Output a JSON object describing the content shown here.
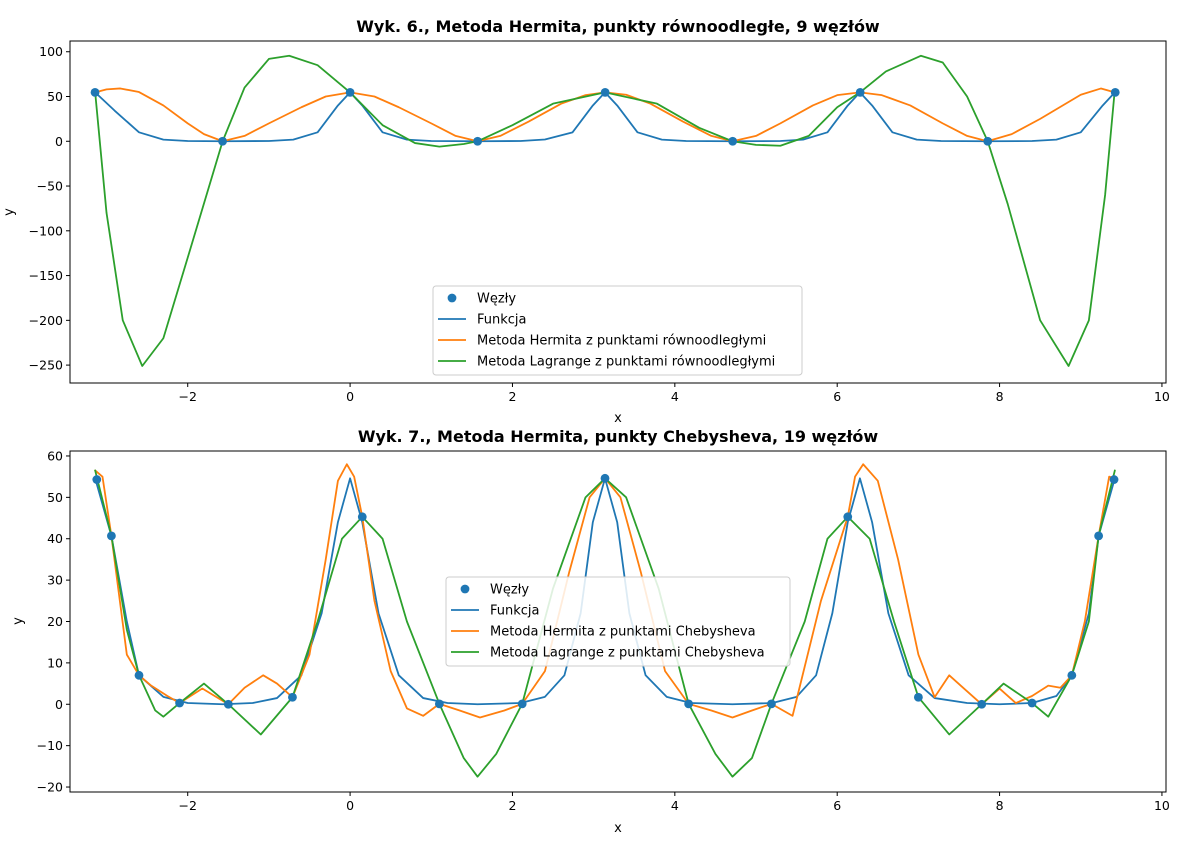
{
  "chart_data": [
    {
      "type": "line",
      "title": "Wyk. 6., Metoda Hermita, punkty równoodległe, 9 węzłów",
      "xlabel": "x",
      "ylabel": "y",
      "xlim": [
        -3.45,
        10.05
      ],
      "ylim": [
        -270,
        112
      ],
      "xticks": [
        -2,
        0,
        2,
        4,
        6,
        8,
        10
      ],
      "yticks": [
        -250,
        -200,
        -150,
        -100,
        -50,
        0,
        50,
        100
      ],
      "legend_position": "lower center",
      "nodes": {
        "name": "Węzły",
        "color": "#1f77b4",
        "x": [
          -3.1416,
          -1.5708,
          0,
          1.5708,
          3.1416,
          4.7124,
          6.2832,
          7.854,
          9.4248
        ],
        "y": [
          54.6,
          0,
          54.6,
          0,
          54.6,
          0,
          54.6,
          0,
          54.6
        ]
      },
      "series": [
        {
          "name": "Funkcja",
          "color": "#1f77b4",
          "x": [
            -3.14,
            -2.9,
            -2.6,
            -2.3,
            -2.0,
            -1.57,
            -1.0,
            -0.7,
            -0.4,
            -0.15,
            0,
            0.15,
            0.4,
            0.7,
            1.0,
            1.57,
            2.1,
            2.4,
            2.74,
            2.99,
            3.14,
            3.29,
            3.54,
            3.84,
            4.14,
            4.71,
            5.3,
            5.58,
            5.88,
            6.13,
            6.28,
            6.43,
            6.68,
            6.98,
            7.28,
            7.85,
            8.4,
            8.7,
            9.0,
            9.27,
            9.42
          ],
          "y": [
            54.6,
            34.2,
            10.0,
            1.8,
            0.3,
            0.0,
            0.3,
            1.8,
            10.0,
            40.0,
            54.6,
            40.0,
            10.0,
            1.8,
            0.3,
            0.0,
            0.3,
            2.0,
            10.0,
            40.0,
            54.6,
            40.0,
            10.0,
            1.8,
            0.3,
            0.0,
            0.3,
            1.8,
            10.0,
            40.0,
            54.6,
            40.0,
            10.0,
            1.8,
            0.3,
            0.0,
            0.3,
            1.8,
            10.0,
            40.0,
            54.6
          ]
        },
        {
          "name": "Metoda Hermita z punktami równoodległymi",
          "color": "#ff7f0e",
          "x": [
            -3.14,
            -3.0,
            -2.83,
            -2.6,
            -2.3,
            -2.0,
            -1.8,
            -1.57,
            -1.3,
            -1.0,
            -0.6,
            -0.3,
            0,
            0.3,
            0.6,
            1.0,
            1.3,
            1.57,
            1.85,
            2.2,
            2.6,
            2.9,
            3.14,
            3.4,
            3.7,
            4.1,
            4.45,
            4.71,
            5.0,
            5.3,
            5.7,
            6.0,
            6.28,
            6.55,
            6.9,
            7.3,
            7.6,
            7.85,
            8.15,
            8.5,
            9.0,
            9.25,
            9.42
          ],
          "y": [
            54.6,
            58.0,
            59.0,
            55.0,
            40.0,
            20.0,
            8.0,
            0.0,
            6.0,
            20.0,
            38.0,
            50.0,
            54.6,
            50.0,
            38.0,
            20.0,
            6.0,
            0.0,
            6.0,
            22.0,
            42.0,
            51.5,
            54.6,
            52.0,
            42.0,
            22.0,
            6.0,
            0.0,
            6.0,
            20.0,
            40.0,
            51.5,
            54.6,
            51.5,
            40.0,
            20.0,
            6.0,
            0.0,
            8.0,
            25.0,
            52.0,
            59.0,
            54.6
          ]
        },
        {
          "name": "Metoda Lagrange z punktami równoodległymi",
          "color": "#2ca02c",
          "x": [
            -3.14,
            -3.0,
            -2.8,
            -2.56,
            -2.3,
            -2.0,
            -1.57,
            -1.3,
            -1.0,
            -0.75,
            -0.4,
            0,
            0.4,
            0.8,
            1.1,
            1.4,
            1.57,
            2.0,
            2.5,
            3.14,
            3.78,
            4.3,
            4.71,
            5.0,
            5.3,
            5.65,
            6.0,
            6.28,
            6.6,
            7.03,
            7.3,
            7.6,
            7.854,
            8.1,
            8.5,
            8.85,
            9.1,
            9.3,
            9.42
          ],
          "y": [
            54.6,
            -80.0,
            -200.0,
            -251.0,
            -220.0,
            -130.0,
            0.0,
            60.0,
            92.0,
            95.5,
            85.0,
            54.6,
            18.0,
            -2.0,
            -6.0,
            -3.0,
            0.0,
            18.0,
            42.0,
            54.6,
            42.0,
            15.0,
            0.0,
            -4.0,
            -5.0,
            6.0,
            38.0,
            54.6,
            78.0,
            95.5,
            88.0,
            50.0,
            0.0,
            -70.0,
            -200.0,
            -251.0,
            -200.0,
            -60.0,
            58.0
          ]
        }
      ]
    },
    {
      "type": "line",
      "title": "Wyk. 7., Metoda Hermita, punkty Chebysheva, 19 węzłów",
      "xlabel": "x",
      "ylabel": "y",
      "xlim": [
        -3.45,
        10.05
      ],
      "ylim": [
        -21.2,
        61.2
      ],
      "xticks": [
        -2,
        0,
        2,
        4,
        6,
        8,
        10
      ],
      "yticks": [
        -20,
        -10,
        0,
        10,
        20,
        30,
        40,
        50,
        60
      ],
      "legend_position": "center",
      "nodes": {
        "name": "Węzły",
        "color": "#1f77b4",
        "x": [
          -3.12,
          -2.94,
          -2.6,
          -2.1,
          -1.5,
          -0.71,
          0.15,
          1.1,
          2.12,
          3.14,
          4.17,
          5.19,
          6.13,
          7.0,
          7.78,
          8.4,
          8.89,
          9.22,
          9.41
        ],
        "y": [
          54.3,
          40.7,
          7.0,
          0.3,
          0.0,
          1.7,
          45.3,
          0.1,
          0.1,
          54.6,
          0.1,
          0.1,
          45.3,
          1.7,
          0.0,
          0.3,
          7.0,
          40.7,
          54.3
        ]
      },
      "series": [
        {
          "name": "Funkcja",
          "color": "#1f77b4",
          "x": [
            -3.14,
            -2.94,
            -2.75,
            -2.6,
            -2.3,
            -2.0,
            -1.57,
            -1.2,
            -0.9,
            -0.6,
            -0.35,
            -0.15,
            0,
            0.15,
            0.35,
            0.6,
            0.9,
            1.2,
            1.57,
            2.1,
            2.4,
            2.64,
            2.84,
            2.99,
            3.14,
            3.29,
            3.44,
            3.64,
            3.9,
            4.2,
            4.71,
            5.2,
            5.5,
            5.74,
            5.94,
            6.13,
            6.28,
            6.43,
            6.63,
            6.88,
            7.2,
            7.6,
            8.0,
            8.4,
            8.7,
            8.89,
            9.1,
            9.22,
            9.42
          ],
          "y": [
            54.6,
            40.7,
            20.0,
            7.0,
            1.8,
            0.3,
            0.0,
            0.3,
            1.5,
            7.0,
            22.0,
            44.0,
            54.6,
            44.0,
            22.0,
            7.0,
            1.5,
            0.3,
            0.0,
            0.3,
            1.8,
            7.0,
            22.0,
            44.0,
            54.6,
            44.0,
            22.0,
            7.0,
            1.8,
            0.3,
            0.0,
            0.3,
            1.8,
            7.0,
            22.0,
            44.0,
            54.6,
            44.0,
            22.0,
            7.0,
            1.5,
            0.3,
            0.0,
            0.3,
            2.0,
            7.0,
            22.0,
            40.7,
            54.6
          ]
        },
        {
          "name": "Metoda Hermita z punktami Chebysheva",
          "color": "#ff7f0e",
          "x": [
            -3.14,
            -3.05,
            -2.94,
            -2.75,
            -2.6,
            -2.45,
            -2.25,
            -2.1,
            -1.82,
            -1.5,
            -1.3,
            -1.07,
            -0.9,
            -0.71,
            -0.5,
            -0.3,
            -0.15,
            -0.04,
            0.05,
            0.15,
            0.3,
            0.5,
            0.7,
            0.9,
            1.1,
            1.35,
            1.6,
            1.9,
            2.12,
            2.4,
            2.7,
            2.95,
            3.14,
            3.33,
            3.58,
            3.88,
            4.17,
            4.45,
            4.71,
            4.95,
            5.19,
            5.45,
            5.8,
            6.13,
            6.22,
            6.32,
            6.5,
            6.75,
            7.0,
            7.2,
            7.38,
            7.55,
            7.78,
            8.0,
            8.2,
            8.4,
            8.6,
            8.75,
            8.89,
            9.05,
            9.22,
            9.35,
            9.42
          ],
          "y": [
            56.5,
            55.0,
            40.7,
            12.0,
            7.0,
            4.5,
            2.0,
            0.3,
            3.8,
            0.0,
            4.0,
            7.0,
            5.0,
            1.7,
            12.0,
            35.0,
            54.0,
            58.0,
            55.0,
            45.3,
            25.0,
            8.0,
            -1.0,
            -2.8,
            0.1,
            -1.5,
            -3.2,
            -1.5,
            0.1,
            8.0,
            32.0,
            50.0,
            54.6,
            50.0,
            32.0,
            8.0,
            0.1,
            -1.5,
            -3.2,
            -1.5,
            0.1,
            -2.8,
            25.0,
            45.3,
            55.0,
            58.0,
            54.0,
            35.0,
            12.0,
            1.7,
            7.0,
            4.0,
            0.0,
            3.8,
            0.3,
            2.0,
            4.5,
            4.0,
            7.0,
            20.0,
            40.7,
            55.0,
            54.6
          ]
        },
        {
          "name": "Metoda Lagrange z punktami Chebysheva",
          "color": "#2ca02c",
          "x": [
            -3.14,
            -2.94,
            -2.75,
            -2.6,
            -2.4,
            -2.3,
            -2.1,
            -1.8,
            -1.5,
            -1.1,
            -0.71,
            -0.4,
            -0.1,
            0.15,
            0.4,
            0.7,
            1.1,
            1.4,
            1.57,
            1.8,
            2.12,
            2.5,
            2.9,
            3.14,
            3.4,
            3.8,
            4.17,
            4.5,
            4.71,
            4.95,
            5.19,
            5.6,
            5.88,
            6.13,
            6.4,
            6.7,
            7.0,
            7.38,
            7.78,
            8.05,
            8.4,
            8.6,
            8.89,
            9.1,
            9.22,
            9.42
          ],
          "y": [
            56.5,
            40.7,
            18.0,
            7.0,
            -1.5,
            -3.0,
            0.3,
            5.0,
            0.0,
            -7.3,
            1.7,
            20.0,
            40.0,
            45.3,
            40.0,
            20.0,
            0.1,
            -13.0,
            -17.5,
            -12.0,
            0.1,
            28.0,
            50.0,
            54.6,
            50.0,
            28.0,
            0.1,
            -12.0,
            -17.5,
            -13.0,
            0.1,
            20.0,
            40.0,
            45.3,
            40.0,
            20.0,
            1.7,
            -7.3,
            0.0,
            5.0,
            0.3,
            -3.0,
            7.0,
            20.0,
            40.7,
            56.5
          ]
        }
      ]
    }
  ]
}
